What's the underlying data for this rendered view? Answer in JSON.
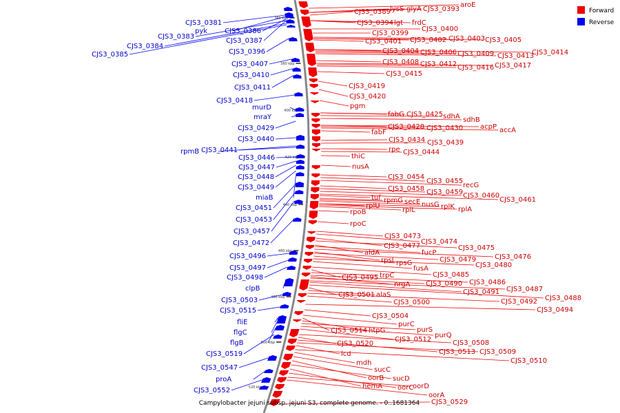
{
  "caption": "Campylobacter jejuni subsp. jejuni S3, complete genome. - 0..1681364",
  "legend": [
    {
      "label": "Forward",
      "color": "#ee0000"
    },
    {
      "label": "Reverse",
      "color": "#0000ee"
    }
  ],
  "colors": {
    "forward": "#ee0000",
    "reverse": "#0000ee",
    "backbone": "#888888",
    "forward_text": "#cc0000",
    "reverse_text": "#0000cc"
  },
  "ticks": [
    "360 kbp",
    "380 kbp",
    "400 kbp",
    "420 kbp",
    "440 kbp",
    "460 kbp",
    "480 kbp",
    "500 kbp",
    "520 kbp"
  ],
  "forward_genes": [
    "CJS3_0389",
    "lysS",
    "glyA",
    "CJS3_0393",
    "aroE",
    "CJS3_0394",
    "lgt",
    "frdC",
    "CJS3_0399",
    "CJS3_0400",
    "CJS3_0401",
    "CJS3_0402",
    "CJS3_0403",
    "CJS3_0405",
    "CJS3_0404",
    "CJS3_0406",
    "CJS3_0409",
    "CJS3_0413",
    "CJS3_0414",
    "CJS3_0408",
    "CJS3_0412",
    "CJS3_0416",
    "CJS3_0417",
    "CJS3_0415",
    "CJS3_0419",
    "CJS3_0420",
    "pgm",
    "fabG",
    "CJS3_0425",
    "sdhA",
    "sdhB",
    "CJS3_0428",
    "CJS3_0430",
    "acpP",
    "fabF",
    "accA",
    "CJS3_0434",
    "CJS3_0439",
    "rpe",
    "CJS3_0444",
    "thiC",
    "nusA",
    "CJS3_0454",
    "CJS3_0455",
    "recG",
    "CJS3_0458",
    "CJS3_0459",
    "CJS3_0460",
    "CJS3_0461",
    "tuf",
    "rpmG",
    "secE",
    "nusG",
    "rplU",
    "rplL",
    "rplK",
    "rplA",
    "rpoB",
    "rpoC",
    "CJS3_0473",
    "CJS3_0474",
    "CJS3_0477",
    "CJS3_0475",
    "aldA",
    "fucP",
    "CJS3_0476",
    "rpsL",
    "CJS3_0479",
    "rpsG",
    "CJS3_0480",
    "fusA",
    "CJS3_0485",
    "CJS3_0495",
    "trpC",
    "CJS3_0486",
    "nrgA",
    "CJS3_0490",
    "CJS3_0487",
    "CJS3_0491",
    "CJS3_0488",
    "CJS3_0501",
    "alaS",
    "CJS3_0492",
    "CJS3_0500",
    "CJS3_0494",
    "CJS3_0504",
    "purC",
    "CJS3_0514",
    "htpG",
    "purS",
    "purQ",
    "CJS3_0512",
    "CJS3_0508",
    "CJS3_0520",
    "CJS3_0513",
    "CJS3_0509",
    "icd",
    "CJS3_0510",
    "mdh",
    "sucC",
    "oorB",
    "sucD",
    "hemA",
    "oorC",
    "oorD",
    "oorA",
    "CJS3_0529"
  ],
  "reverse_genes": [
    "CJS3_0381",
    "pyk",
    "CJS3_0386",
    "CJS3_0383",
    "CJS3_0387",
    "CJS3_0384",
    "CJS3_0385",
    "CJS3_0396",
    "CJS3_0407",
    "CJS3_0410",
    "CJS3_0411",
    "CJS3_0418",
    "murD",
    "mraY",
    "CJS3_0429",
    "CJS3_0440",
    "rpmB",
    "CJS3_0441",
    "CJS3_0446",
    "CJS3_0447",
    "CJS3_0448",
    "CJS3_0449",
    "miaB",
    "CJS3_0451",
    "CJS3_0453",
    "CJS3_0457",
    "CJS3_0472",
    "CJS3_0496",
    "CJS3_0497",
    "CJS3_0498",
    "clpB",
    "CJS3_0503",
    "CJS3_0515",
    "fliE",
    "flgC",
    "flgB",
    "CJS3_0519",
    "CJS3_0547",
    "proA",
    "CJS3_0552"
  ]
}
